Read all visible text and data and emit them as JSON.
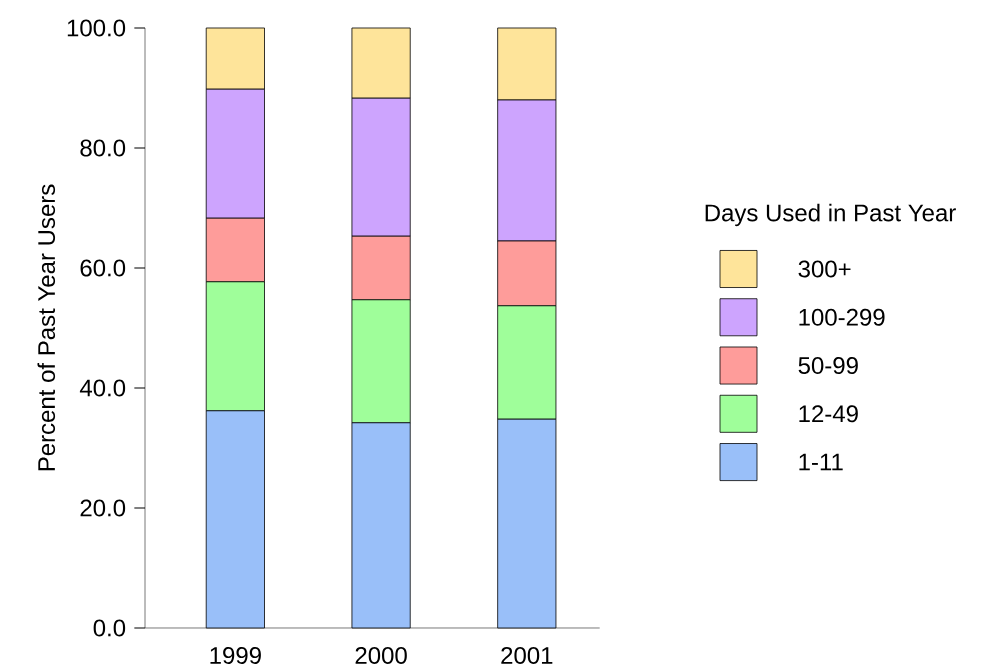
{
  "chart_data": {
    "type": "bar",
    "stacked": true,
    "ylabel": "Percent of Past Year Users",
    "legend_title": "Days Used in Past Year",
    "legend": "right",
    "categories": [
      "1999",
      "2000",
      "2001"
    ],
    "ylim": [
      0,
      100
    ],
    "yticks": [
      {
        "value": 0,
        "label": "0.0"
      },
      {
        "value": 20,
        "label": "20.0"
      },
      {
        "value": 40,
        "label": "40.0"
      },
      {
        "value": 60,
        "label": "60.0"
      },
      {
        "value": 80,
        "label": "80.0"
      },
      {
        "value": 100,
        "label": "100.0"
      }
    ],
    "series": [
      {
        "name": "1-11",
        "color": "#99bff9",
        "values": [
          36.2,
          34.2,
          34.8
        ]
      },
      {
        "name": "12-49",
        "color": "#9ffe9a",
        "values": [
          21.5,
          20.5,
          18.9
        ]
      },
      {
        "name": "50-99",
        "color": "#fe9c9a",
        "values": [
          10.6,
          10.6,
          10.8
        ]
      },
      {
        "name": "100-299",
        "color": "#cda4fe",
        "values": [
          21.5,
          23.0,
          23.5
        ]
      },
      {
        "name": "300+",
        "color": "#fee49a",
        "values": [
          10.2,
          11.7,
          12.0
        ]
      }
    ]
  }
}
